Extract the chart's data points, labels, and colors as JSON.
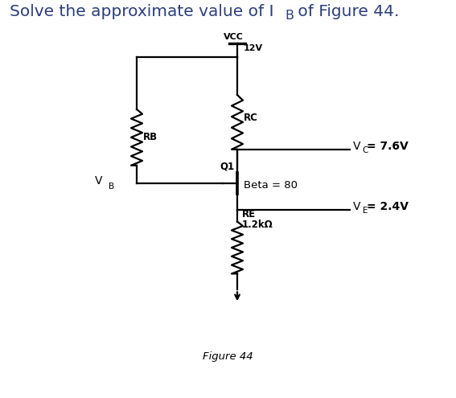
{
  "bg_color": "#ffffff",
  "line_color": "#000000",
  "text_color": "#1a1a2e",
  "title_color": "#2c3e7a",
  "title_text1": "Solve the approximate value of I",
  "title_sub": "B",
  "title_text2": " of Figure 44.",
  "figure_label": "Figure 44",
  "vcc_label": "VCC",
  "vcc_voltage": "12V",
  "rc_label": "RC",
  "rb_label": "RB",
  "re_label": "RE",
  "re_value": "1.2kΩ",
  "q1_label": "Q1",
  "beta_label": "Beta = 80",
  "vc_text": "V",
  "vc_sub": "C",
  "vc_val": "= 7.6V",
  "ve_text": "V",
  "ve_sub": "E",
  "ve_val": "= 2.4V",
  "vb_text": "V",
  "vb_sub": "B",
  "font_size_title": 14.5,
  "font_size_circuit": 8.5,
  "font_size_label": 9.5
}
